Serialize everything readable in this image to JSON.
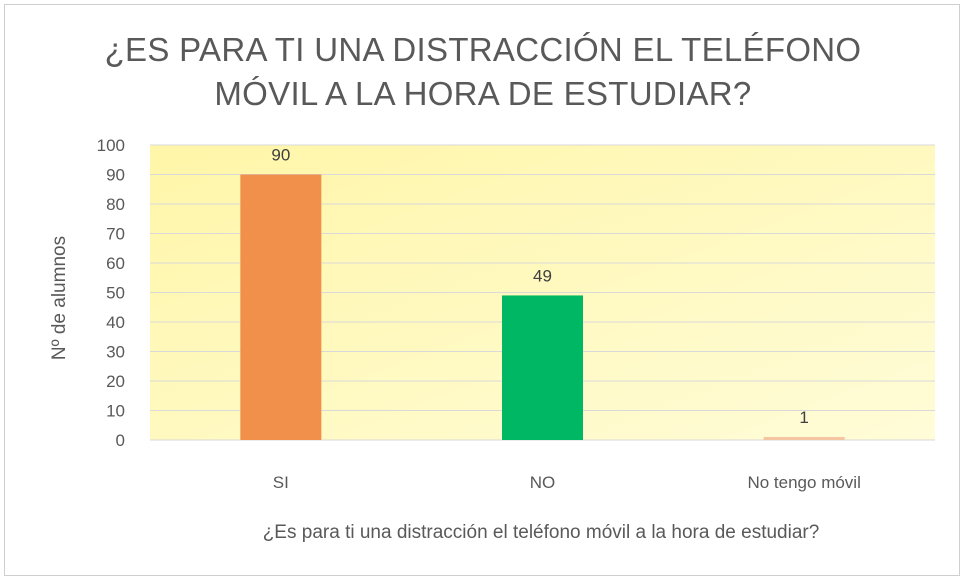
{
  "chart_data": {
    "type": "bar",
    "title_line1": "¿ES PARA TI UNA DISTRACCIÓN EL TELÉFONO",
    "title_line2": "MÓVIL A LA HORA DE ESTUDIAR?",
    "xlabel": "¿Es para ti una distracción el teléfono móvil a la hora de estudiar?",
    "ylabel": "Nº de alumnos",
    "categories": [
      "SI",
      "NO",
      "No tengo móvil"
    ],
    "values": [
      90,
      49,
      1
    ],
    "data_labels": [
      "90",
      "49",
      "1"
    ],
    "ylim": [
      0,
      100
    ],
    "yticks": [
      0,
      10,
      20,
      30,
      40,
      50,
      60,
      70,
      80,
      90,
      100
    ],
    "grid": true,
    "legend": "none",
    "colors": [
      "#F0904A",
      "#00B863",
      "#F5C4A0"
    ],
    "plot_background": [
      "#FFF6A8",
      "#FFFCD8"
    ],
    "gridline_color": "#D9D9D9"
  }
}
